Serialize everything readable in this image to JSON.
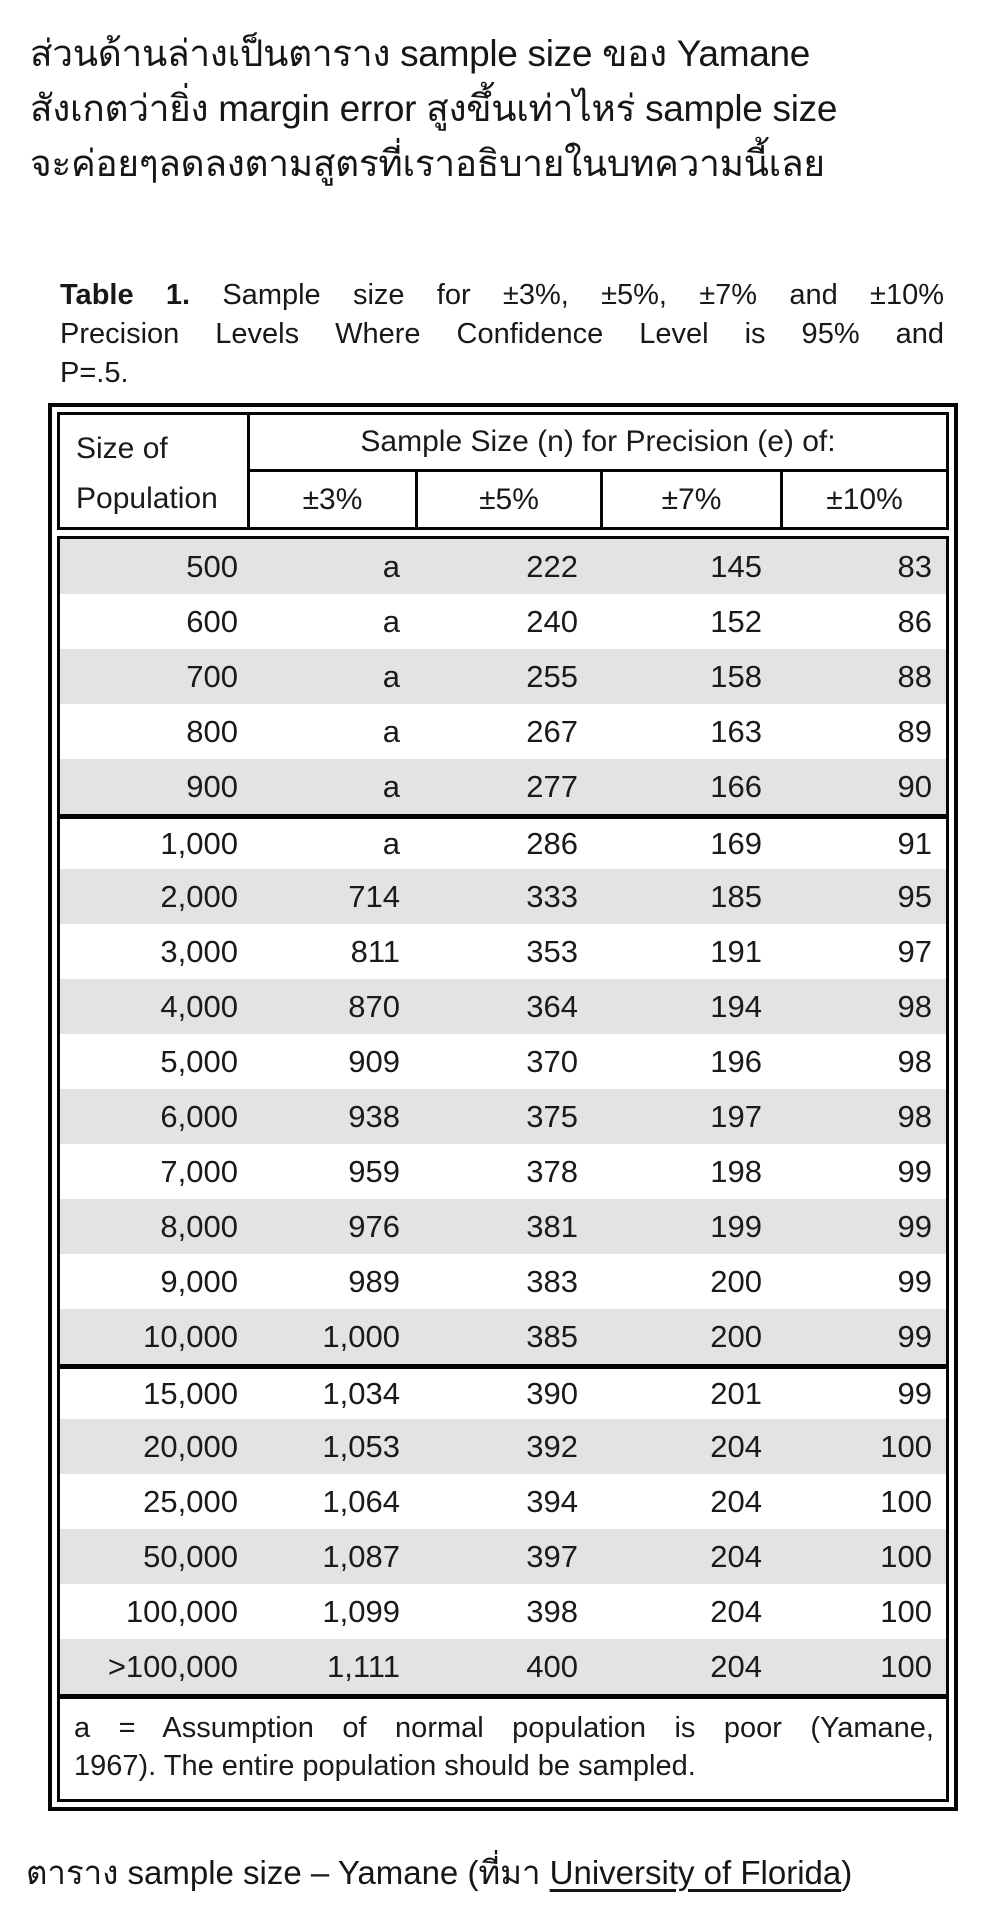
{
  "intro": {
    "lines": [
      "ส่วนด้านล่างเป็นตาราง sample size ของ Yamane",
      "สังเกตว่ายิ่ง margin error สูงขึ้นเท่าไหร่ sample size",
      "จะค่อยๆลดลงตามสูตรที่เราอธิบายในบทความนี้เลย"
    ]
  },
  "table_title": {
    "label": "Table 1.",
    "line1_rest": "Sample size for ±3%, ±5%, ±7% and ±10%",
    "line2": "Precision Levels Where Confidence Level is 95% and",
    "line3": "P=.5."
  },
  "table": {
    "header": {
      "population_line1": "Size of",
      "population_line2": "Population",
      "group_label": "Sample Size (n) for Precision (e) of:",
      "precisions": [
        "±3%",
        "±5%",
        "±7%",
        "±10%"
      ]
    },
    "columns": [
      "Size of Population",
      "±3%",
      "±5%",
      "±7%",
      "±10%"
    ],
    "blocks": [
      {
        "rows": [
          [
            "500",
            "a",
            "222",
            "145",
            "83"
          ],
          [
            "600",
            "a",
            "240",
            "152",
            "86"
          ],
          [
            "700",
            "a",
            "255",
            "158",
            "88"
          ],
          [
            "800",
            "a",
            "267",
            "163",
            "89"
          ],
          [
            "900",
            "a",
            "277",
            "166",
            "90"
          ]
        ]
      },
      {
        "rows": [
          [
            "1,000",
            "a",
            "286",
            "169",
            "91"
          ],
          [
            "2,000",
            "714",
            "333",
            "185",
            "95"
          ],
          [
            "3,000",
            "811",
            "353",
            "191",
            "97"
          ],
          [
            "4,000",
            "870",
            "364",
            "194",
            "98"
          ],
          [
            "5,000",
            "909",
            "370",
            "196",
            "98"
          ],
          [
            "6,000",
            "938",
            "375",
            "197",
            "98"
          ],
          [
            "7,000",
            "959",
            "378",
            "198",
            "99"
          ],
          [
            "8,000",
            "976",
            "381",
            "199",
            "99"
          ],
          [
            "9,000",
            "989",
            "383",
            "200",
            "99"
          ],
          [
            "10,000",
            "1,000",
            "385",
            "200",
            "99"
          ]
        ]
      },
      {
        "rows": [
          [
            "15,000",
            "1,034",
            "390",
            "201",
            "99"
          ],
          [
            "20,000",
            "1,053",
            "392",
            "204",
            "100"
          ],
          [
            "25,000",
            "1,064",
            "394",
            "204",
            "100"
          ],
          [
            "50,000",
            "1,087",
            "397",
            "204",
            "100"
          ],
          [
            "100,000",
            "1,099",
            "398",
            "204",
            "100"
          ],
          [
            ">100,000",
            "1,111",
            "400",
            "204",
            "100"
          ]
        ]
      }
    ],
    "footnote_line1": "a = Assumption of normal population is poor (Yamane,",
    "footnote_line2": "1967).  The entire population should be sampled."
  },
  "caption": {
    "prefix": "ตาราง sample size – Yamane (ที่มา ",
    "link_text": "University of Florida",
    "suffix": ")"
  },
  "colors": {
    "row_shade": "#e3e3e3",
    "border": "#050505",
    "text": "#1a1a1a",
    "background": "#ffffff"
  }
}
